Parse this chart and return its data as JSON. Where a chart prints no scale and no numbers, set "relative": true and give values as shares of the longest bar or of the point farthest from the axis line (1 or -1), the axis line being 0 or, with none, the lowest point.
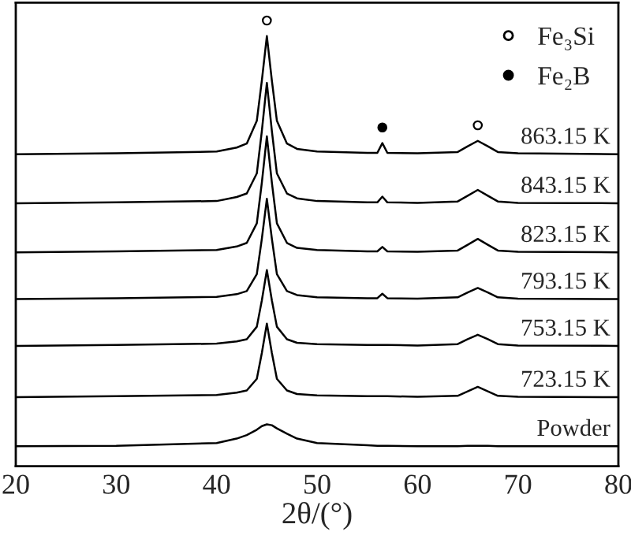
{
  "chart_data": {
    "type": "line",
    "xlabel": "2θ/(°)",
    "relative": true,
    "xlim": [
      20,
      80
    ],
    "xticks": [
      20,
      30,
      40,
      50,
      60,
      70,
      80
    ],
    "tick_labels": "x",
    "grid": false,
    "legend": "top right",
    "marker": "none",
    "line_style": "solid",
    "x": [
      20,
      30,
      40,
      42,
      43,
      44,
      44.5,
      45,
      45.5,
      46,
      47,
      48,
      50,
      55,
      56,
      56.5,
      57,
      60,
      64,
      65,
      66,
      67,
      68,
      70,
      80
    ],
    "series": [
      {
        "name": "863.15 K",
        "color": "#000000",
        "values": [
          0.7,
          0.702,
          0.706,
          0.715,
          0.724,
          0.775,
          0.865,
          0.965,
          0.865,
          0.775,
          0.724,
          0.712,
          0.706,
          0.703,
          0.703,
          0.725,
          0.703,
          0.702,
          0.705,
          0.718,
          0.73,
          0.718,
          0.705,
          0.702,
          0.7
        ]
      },
      {
        "name": "843.15 K",
        "color": "#000000",
        "values": [
          0.59,
          0.592,
          0.595,
          0.604,
          0.612,
          0.657,
          0.752,
          0.86,
          0.752,
          0.657,
          0.612,
          0.601,
          0.595,
          0.592,
          0.592,
          0.605,
          0.592,
          0.591,
          0.594,
          0.607,
          0.62,
          0.607,
          0.594,
          0.591,
          0.59
        ]
      },
      {
        "name": "823.15 K",
        "color": "#000000",
        "values": [
          0.48,
          0.482,
          0.485,
          0.493,
          0.501,
          0.545,
          0.636,
          0.74,
          0.636,
          0.545,
          0.501,
          0.49,
          0.485,
          0.482,
          0.482,
          0.492,
          0.482,
          0.481,
          0.484,
          0.497,
          0.51,
          0.497,
          0.484,
          0.481,
          0.48
        ]
      },
      {
        "name": "793.15 K",
        "color": "#000000",
        "values": [
          0.375,
          0.377,
          0.38,
          0.386,
          0.393,
          0.431,
          0.51,
          0.6,
          0.51,
          0.431,
          0.393,
          0.384,
          0.379,
          0.377,
          0.377,
          0.387,
          0.377,
          0.376,
          0.379,
          0.39,
          0.4,
          0.39,
          0.379,
          0.376,
          0.375
        ]
      },
      {
        "name": "753.15 K",
        "color": "#000000",
        "values": [
          0.27,
          0.272,
          0.275,
          0.28,
          0.285,
          0.313,
          0.372,
          0.44,
          0.372,
          0.313,
          0.285,
          0.277,
          0.274,
          0.272,
          0.272,
          0.272,
          0.272,
          0.271,
          0.274,
          0.285,
          0.295,
          0.285,
          0.274,
          0.271,
          0.27
        ]
      },
      {
        "name": "723.15 K",
        "color": "#000000",
        "values": [
          0.155,
          0.157,
          0.16,
          0.165,
          0.17,
          0.196,
          0.254,
          0.32,
          0.254,
          0.196,
          0.17,
          0.162,
          0.159,
          0.157,
          0.157,
          0.157,
          0.157,
          0.156,
          0.158,
          0.168,
          0.178,
          0.168,
          0.158,
          0.156,
          0.155
        ]
      },
      {
        "name": "Powder",
        "color": "#000000",
        "values": [
          0.045,
          0.046,
          0.052,
          0.062,
          0.07,
          0.082,
          0.09,
          0.094,
          0.092,
          0.085,
          0.073,
          0.062,
          0.052,
          0.047,
          0.046,
          0.046,
          0.046,
          0.045,
          0.045,
          0.046,
          0.046,
          0.046,
          0.045,
          0.045,
          0.045
        ]
      },
      {
        "name": "Fe₃Si",
        "type": "scatter",
        "marker": "circle",
        "color": "#ffffff",
        "x": [
          45,
          66
        ],
        "values": [
          1.0,
          0.765
        ]
      },
      {
        "name": "Fe₂B",
        "type": "scatter",
        "marker": "circle",
        "color": "#000000",
        "x": [
          56.5
        ],
        "values": [
          0.76
        ]
      }
    ]
  }
}
